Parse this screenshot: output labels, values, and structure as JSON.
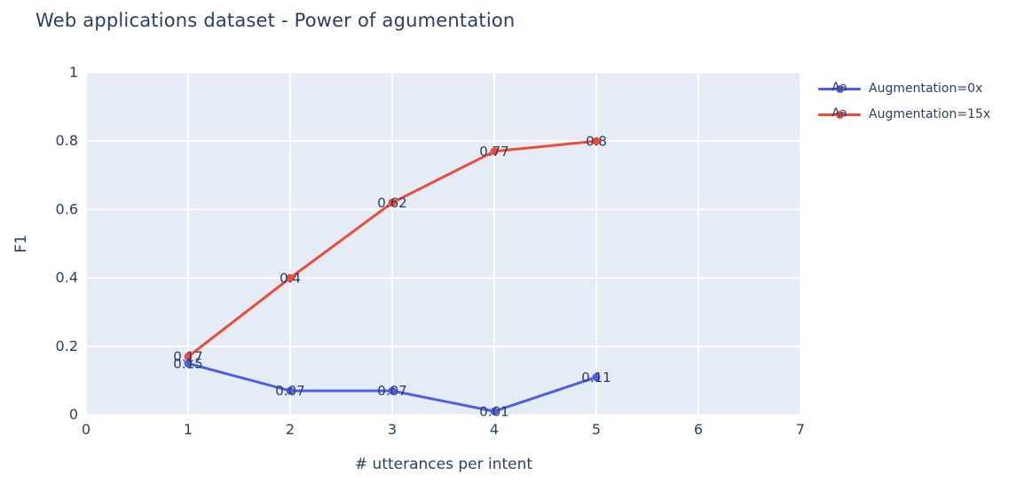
{
  "style": {
    "plot_bg": "#e5ecf6",
    "grid_color": "#ffffff",
    "text_color": "#2a3f5f",
    "series_blue": "#4f5ee8",
    "series_red": "#ef4b38"
  },
  "chart_data": {
    "type": "line",
    "title": "Web applications dataset - Power of agumentation",
    "xlabel": "# utterances per intent",
    "ylabel": "F1",
    "xlim": [
      0,
      7
    ],
    "ylim": [
      0,
      1
    ],
    "grid": true,
    "legend_position": "top-right",
    "legend_sample_text": "Aa",
    "xticks": {
      "values": [
        0,
        1,
        2,
        3,
        4,
        5,
        6,
        7
      ],
      "labels": [
        "0",
        "1",
        "2",
        "3",
        "4",
        "5",
        "6",
        "7"
      ]
    },
    "yticks": {
      "values": [
        0,
        0.2,
        0.4,
        0.6,
        0.8,
        1
      ],
      "labels": [
        "0",
        "0.2",
        "0.4",
        "0.6",
        "0.8",
        "1"
      ]
    },
    "x": [
      1,
      2,
      3,
      4,
      5
    ],
    "series": [
      {
        "name": "Augmentation=0x",
        "color": "#4f5ee8",
        "values": [
          0.15,
          0.07,
          0.07,
          0.01,
          0.11
        ],
        "point_labels": [
          "0.15",
          "0.07",
          "0.07",
          "0.01",
          "0.11"
        ]
      },
      {
        "name": "Augmentation=15x",
        "color": "#ef4b38",
        "values": [
          0.17,
          0.4,
          0.62,
          0.77,
          0.8
        ],
        "point_labels": [
          "0.17",
          "0.4",
          "0.62",
          "0.77",
          "0.8"
        ]
      }
    ]
  }
}
